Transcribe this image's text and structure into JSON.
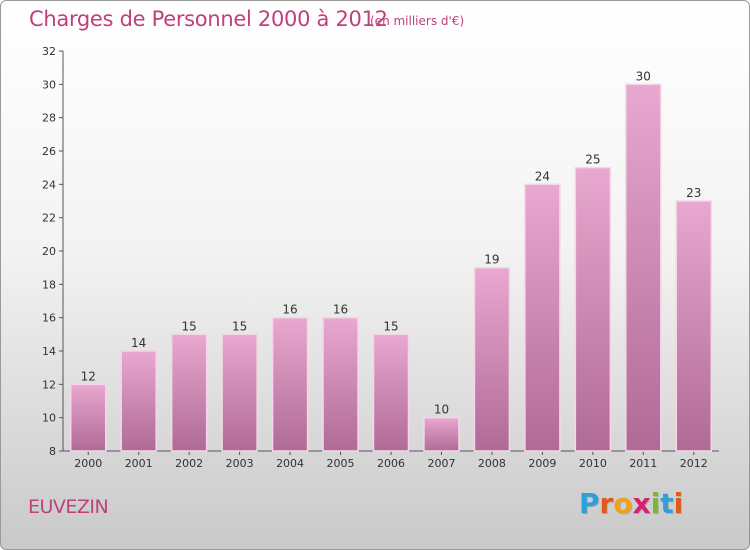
{
  "header": {
    "title": "Charges de Personnel 2000 à 2012",
    "subtitle": "(en milliers d'€)"
  },
  "footer": {
    "commune": "EUVEZIN",
    "logo_letters": [
      "P",
      "r",
      "o",
      "x",
      "i",
      "t",
      "i"
    ],
    "logo_colors": [
      "#2e9fd8",
      "#e05a1c",
      "#f0a11c",
      "#d9206f",
      "#7cb82f",
      "#2e9fd8",
      "#e05a1c"
    ]
  },
  "colors": {
    "bar_top": "#e8a8cf",
    "bar_bottom": "#b06a96",
    "accent": "#c0407c"
  },
  "chart_data": {
    "type": "bar",
    "title": "Charges de Personnel 2000 à 2012",
    "subtitle": "(en milliers d'€)",
    "categories": [
      "2000",
      "2001",
      "2002",
      "2003",
      "2004",
      "2005",
      "2006",
      "2007",
      "2008",
      "2009",
      "2010",
      "2011",
      "2012"
    ],
    "values": [
      12,
      14,
      15,
      15,
      16,
      16,
      15,
      10,
      19,
      24,
      25,
      30,
      23
    ],
    "ylim": [
      8,
      32
    ],
    "yticks": [
      8,
      10,
      12,
      14,
      16,
      18,
      20,
      22,
      24,
      26,
      28,
      30,
      32
    ],
    "grid": false,
    "data_labels": true
  }
}
